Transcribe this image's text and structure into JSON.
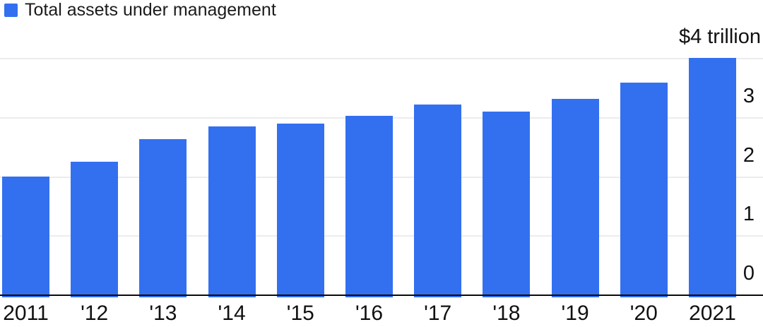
{
  "colors": {
    "accent": "#3370F0",
    "gridline": "#ececec",
    "axis": "#0a0a0a",
    "text": "#111111"
  },
  "chart_data": {
    "type": "bar",
    "title": "Total assets under management",
    "categories": [
      "2011",
      "'12",
      "'13",
      "'14",
      "'15",
      "'16",
      "'17",
      "'18",
      "'19",
      "'20",
      "2021"
    ],
    "values": [
      1.99,
      2.24,
      2.63,
      2.84,
      2.89,
      3.02,
      3.21,
      3.09,
      3.31,
      3.58,
      4.0
    ],
    "unit": "trillion USD",
    "xlabel": "",
    "ylabel": "",
    "ylim": [
      0,
      4
    ],
    "y_top_label": "$4 trillion",
    "y_ticks": [
      {
        "value": 3,
        "label": "3"
      },
      {
        "value": 2,
        "label": "2"
      },
      {
        "value": 1,
        "label": "1"
      },
      {
        "value": 0,
        "label": "0"
      }
    ],
    "grid": "horizontal",
    "legend_position": "top-left",
    "bar_color": "#3370F0"
  }
}
